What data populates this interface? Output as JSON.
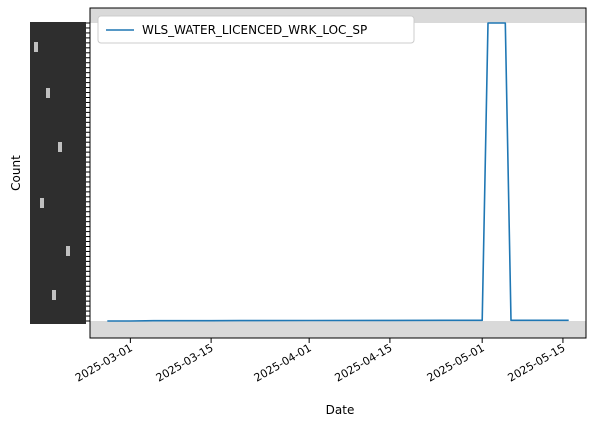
{
  "chart_data": {
    "type": "line",
    "title": "",
    "xlabel": "Date",
    "ylabel": "Count",
    "legend": {
      "placement": "top-left",
      "entries": [
        "WLS_WATER_LICENCED_WRK_LOC_SP"
      ]
    },
    "grid": false,
    "xlim": [
      "2025-02-22",
      "2025-05-19"
    ],
    "ylim": [
      0,
      1000
    ],
    "x_ticks": [
      "2025-03-01",
      "2025-03-15",
      "2025-04-01",
      "2025-04-15",
      "2025-05-01",
      "2025-05-15"
    ],
    "series": [
      {
        "name": "WLS_WATER_LICENCED_WRK_LOC_SP",
        "color": "#1f77b4",
        "x": [
          "2025-02-25",
          "2025-03-01",
          "2025-03-05",
          "2025-03-15",
          "2025-03-20",
          "2025-04-01",
          "2025-04-15",
          "2025-04-25",
          "2025-05-01",
          "2025-05-02",
          "2025-05-03",
          "2025-05-04",
          "2025-05-05",
          "2025-05-06",
          "2025-05-10",
          "2025-05-16"
        ],
        "values": [
          0,
          0,
          1,
          1,
          1.5,
          1.8,
          2,
          2.2,
          2.3,
          1000,
          1000,
          1000,
          1000,
          2.4,
          2.4,
          2.5
        ]
      }
    ]
  }
}
